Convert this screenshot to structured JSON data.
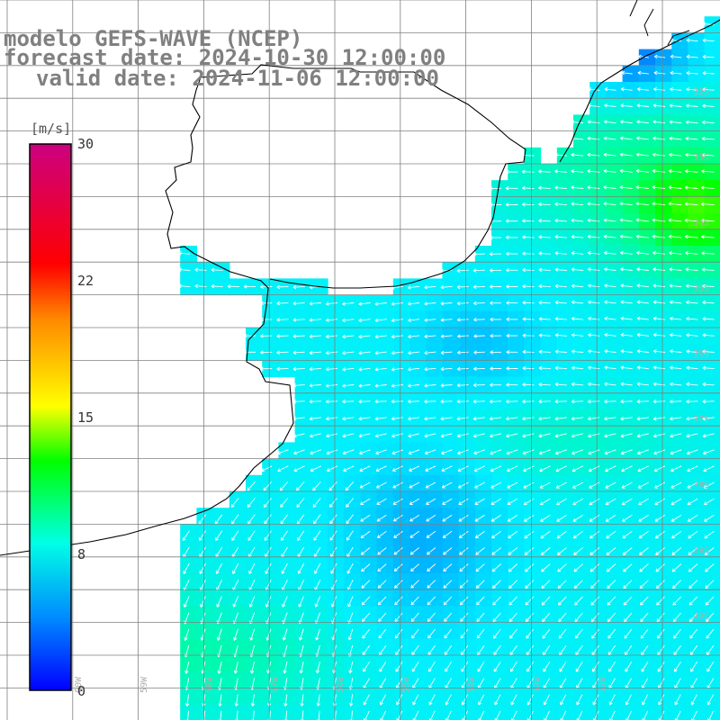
{
  "title": {
    "model": "modelo GEFS-WAVE (NCEP)",
    "forecast": "forecast date: 2024-10-30 12:00:00",
    "valid": "valid date: 2024-11-06 12:00:00"
  },
  "colorbar": {
    "unit": "[m/s]",
    "ticks": [
      "30",
      "22",
      "15",
      "8",
      "0"
    ],
    "tick_values": [
      30,
      22,
      15,
      8,
      0
    ],
    "range": [
      0,
      30
    ],
    "colors": [
      "#0000ff",
      "#00aaff",
      "#00ffe6",
      "#00ff00",
      "#ffff00",
      "#ff7f00",
      "#ff0000",
      "#cc0080"
    ]
  },
  "map": {
    "lat_labels": [
      "32S",
      "33S",
      "34S",
      "35S",
      "36S",
      "37S",
      "38S",
      "39S",
      "40S"
    ],
    "lon_labels": [
      "60W",
      "59W",
      "58W",
      "57W",
      "56W",
      "55W",
      "54W",
      "53W",
      "52W"
    ],
    "land_color": "#ffffff",
    "grid_color": "#808080",
    "arrow_color": "#ffffff"
  }
}
